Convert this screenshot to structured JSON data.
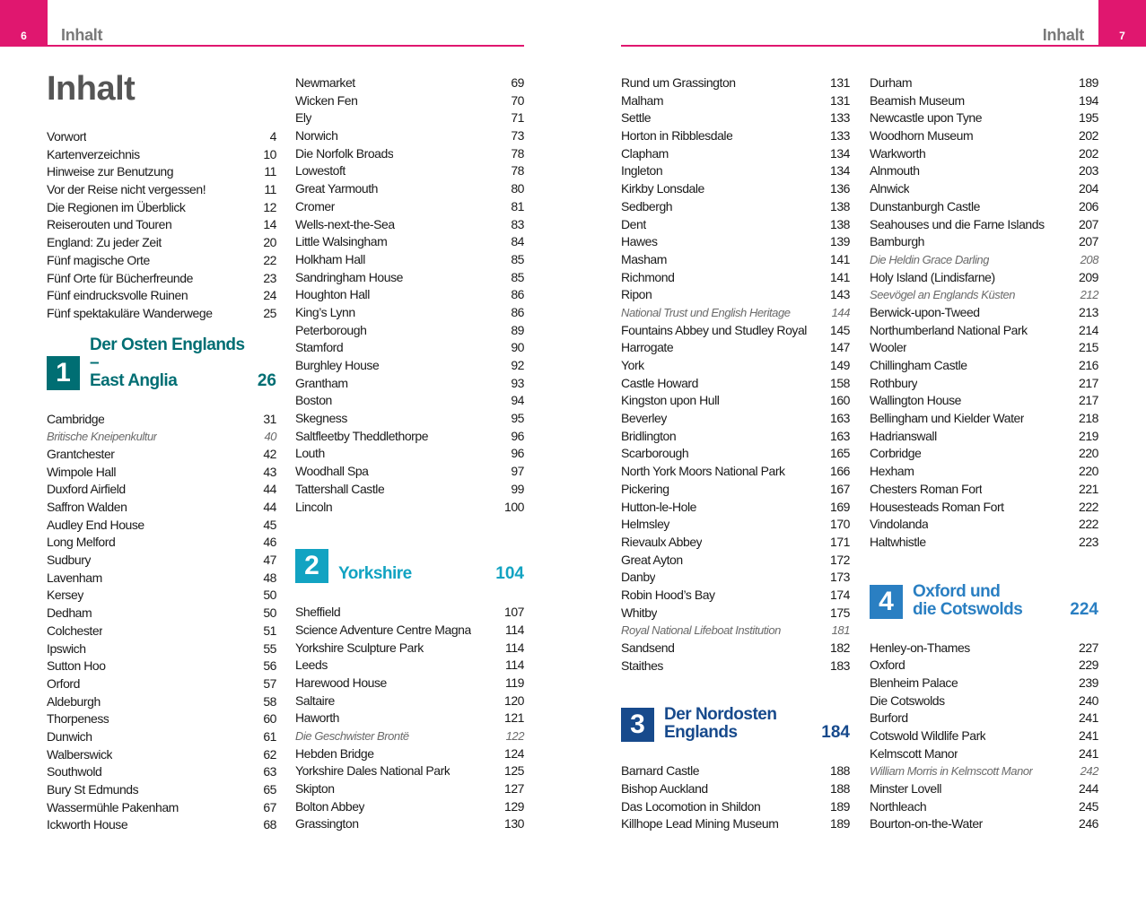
{
  "header_left": {
    "page": 6,
    "title": "Inhalt"
  },
  "header_right": {
    "title": "Inhalt",
    "page": 7
  },
  "columns": [
    {
      "title": "Inhalt",
      "items": [
        {
          "title": "Vorwort",
          "page": 4
        },
        {
          "title": "Kartenverzeichnis",
          "page": 10
        },
        {
          "title": "Hinweise zur Benutzung",
          "page": 11
        },
        {
          "title": "Vor der Reise nicht vergessen!",
          "page": 11
        },
        {
          "title": "Die Regionen im Überblick",
          "page": 12
        },
        {
          "title": "Reiserouten und Touren",
          "page": 14
        },
        {
          "title": "England: Zu jeder Zeit",
          "page": 20
        },
        {
          "title": "Fünf magische Orte",
          "page": 22
        },
        {
          "title": "Fünf Orte für Bücherfreunde",
          "page": 23
        },
        {
          "title": "Fünf eindrucksvolle Ruinen",
          "page": 24
        },
        {
          "title": "Fünf spektakuläre Wanderwege",
          "page": 25
        },
        {
          "number": 1,
          "title": [
            "Der Osten Englands –",
            "East Anglia"
          ],
          "page": 26,
          "color": "#006e73"
        },
        {
          "title": "Cambridge",
          "page": 31
        },
        {
          "title": "Britische Kneipenkultur",
          "page": 40,
          "style": "italic"
        },
        {
          "title": "Grantchester",
          "page": 42
        },
        {
          "title": "Wimpole Hall",
          "page": 43
        },
        {
          "title": "Duxford Airfield",
          "page": 44
        },
        {
          "title": "Saffron Walden",
          "page": 44
        },
        {
          "title": "Audley End House",
          "page": 45
        },
        {
          "title": "Long Melford",
          "page": 46
        },
        {
          "title": "Sudbury",
          "page": 47
        },
        {
          "title": "Lavenham",
          "page": 48
        },
        {
          "title": "Kersey",
          "page": 50
        },
        {
          "title": "Dedham",
          "page": 50
        },
        {
          "title": "Colchester",
          "page": 51
        },
        {
          "title": "Ipswich",
          "page": 55
        },
        {
          "title": "Sutton Hoo",
          "page": 56
        },
        {
          "title": "Orford",
          "page": 57
        },
        {
          "title": "Aldeburgh",
          "page": 58
        },
        {
          "title": "Thorpeness",
          "page": 60
        },
        {
          "title": "Dunwich",
          "page": 61
        },
        {
          "title": "Walberswick",
          "page": 62
        },
        {
          "title": "Southwold",
          "page": 63
        },
        {
          "title": "Bury St Edmunds",
          "page": 65
        },
        {
          "title": "Wassermühle Pakenham",
          "page": 67
        },
        {
          "title": "Ickworth House",
          "page": 68
        }
      ]
    },
    {
      "items": [
        {
          "title": "Newmarket",
          "page": 69
        },
        {
          "title": "Wicken Fen",
          "page": 70
        },
        {
          "title": "Ely",
          "page": 71
        },
        {
          "title": "Norwich",
          "page": 73
        },
        {
          "title": "Die Norfolk Broads",
          "page": 78
        },
        {
          "title": "Lowestoft",
          "page": 78
        },
        {
          "title": "Great Yarmouth",
          "page": 80
        },
        {
          "title": "Cromer",
          "page": 81
        },
        {
          "title": "Wells-next-the-Sea",
          "page": 83
        },
        {
          "title": "Little Walsingham",
          "page": 84
        },
        {
          "title": "Holkham Hall",
          "page": 85
        },
        {
          "title": "Sandringham House",
          "page": 85
        },
        {
          "title": "Houghton Hall",
          "page": 86
        },
        {
          "title": "King’s Lynn",
          "page": 86
        },
        {
          "title": "Peterborough",
          "page": 89
        },
        {
          "title": "Stamford",
          "page": 90
        },
        {
          "title": "Burghley House",
          "page": 92
        },
        {
          "title": "Grantham",
          "page": 93
        },
        {
          "title": "Boston",
          "page": 94
        },
        {
          "title": "Skegness",
          "page": 95
        },
        {
          "title": "Saltfleetby Theddlethorpe",
          "page": 96
        },
        {
          "title": "Louth",
          "page": 96
        },
        {
          "title": "Woodhall Spa",
          "page": 97
        },
        {
          "title": "Tattershall Castle",
          "page": 99
        },
        {
          "title": "Lincoln",
          "page": 100
        },
        {
          "number": 2,
          "title": [
            "Yorkshire"
          ],
          "page": 104,
          "color": "#12a3c2"
        },
        {
          "title": "Sheffield",
          "page": 107
        },
        {
          "title": "Science Adventure Centre Magna",
          "page": 114
        },
        {
          "title": "Yorkshire Sculpture Park",
          "page": 114
        },
        {
          "title": "Leeds",
          "page": 114
        },
        {
          "title": "Harewood House",
          "page": 119
        },
        {
          "title": "Saltaire",
          "page": 120
        },
        {
          "title": "Haworth",
          "page": 121
        },
        {
          "title": "Die Geschwister Brontë",
          "page": 122,
          "style": "italic"
        },
        {
          "title": "Hebden Bridge",
          "page": 124
        },
        {
          "title": "Yorkshire Dales National Park",
          "page": 125
        },
        {
          "title": "Skipton",
          "page": 127
        },
        {
          "title": "Bolton Abbey",
          "page": 129
        },
        {
          "title": "Grassington",
          "page": 130
        }
      ]
    },
    {
      "items": [
        {
          "title": "Rund um Grassington",
          "page": 131
        },
        {
          "title": "Malham",
          "page": 131
        },
        {
          "title": "Settle",
          "page": 133
        },
        {
          "title": "Horton in Ribblesdale",
          "page": 133
        },
        {
          "title": "Clapham",
          "page": 134
        },
        {
          "title": "Ingleton",
          "page": 134
        },
        {
          "title": "Kirkby Lonsdale",
          "page": 136
        },
        {
          "title": "Sedbergh",
          "page": 138
        },
        {
          "title": "Dent",
          "page": 138
        },
        {
          "title": "Hawes",
          "page": 139
        },
        {
          "title": "Masham",
          "page": 141
        },
        {
          "title": "Richmond",
          "page": 141
        },
        {
          "title": "Ripon",
          "page": 143
        },
        {
          "title": "National Trust und English Heritage",
          "page": 144,
          "style": "italic"
        },
        {
          "title": "Fountains Abbey und Studley Royal",
          "page": 145
        },
        {
          "title": "Harrogate",
          "page": 147
        },
        {
          "title": "York",
          "page": 149
        },
        {
          "title": "Castle Howard",
          "page": 158
        },
        {
          "title": "Kingston upon Hull",
          "page": 160
        },
        {
          "title": "Beverley",
          "page": 163
        },
        {
          "title": "Bridlington",
          "page": 163
        },
        {
          "title": "Scarborough",
          "page": 165
        },
        {
          "title": "North York Moors National Park",
          "page": 166
        },
        {
          "title": "Pickering",
          "page": 167
        },
        {
          "title": "Hutton-le-Hole",
          "page": 169
        },
        {
          "title": "Helmsley",
          "page": 170
        },
        {
          "title": "Rievaulx Abbey",
          "page": 171
        },
        {
          "title": "Great Ayton",
          "page": 172
        },
        {
          "title": "Danby",
          "page": 173
        },
        {
          "title": "Robin Hood’s Bay",
          "page": 174
        },
        {
          "title": "Whitby",
          "page": 175
        },
        {
          "title": "Royal National Lifeboat Institution",
          "page": 181,
          "style": "italic"
        },
        {
          "title": "Sandsend",
          "page": 182
        },
        {
          "title": "Staithes",
          "page": 183
        },
        {
          "number": 3,
          "title": [
            "Der Nordosten",
            "Englands"
          ],
          "page": 184,
          "color": "#174a8c"
        },
        {
          "title": "Barnard Castle",
          "page": 188
        },
        {
          "title": "Bishop Auckland",
          "page": 188
        },
        {
          "title": "Das Locomotion in Shildon",
          "page": 189
        },
        {
          "title": "Killhope Lead Mining Museum",
          "page": 189
        }
      ]
    },
    {
      "items": [
        {
          "title": "Durham",
          "page": 189
        },
        {
          "title": "Beamish Museum",
          "page": 194
        },
        {
          "title": "Newcastle upon Tyne",
          "page": 195
        },
        {
          "title": "Woodhorn Museum",
          "page": 202
        },
        {
          "title": "Warkworth",
          "page": 202
        },
        {
          "title": "Alnmouth",
          "page": 203
        },
        {
          "title": "Alnwick",
          "page": 204
        },
        {
          "title": "Dunstanburgh Castle",
          "page": 206
        },
        {
          "title": "Seahouses und die Farne Islands",
          "page": 207
        },
        {
          "title": "Bamburgh",
          "page": 207
        },
        {
          "title": "Die Heldin Grace Darling",
          "page": 208,
          "style": "italic"
        },
        {
          "title": "Holy Island (Lindisfarne)",
          "page": 209
        },
        {
          "title": "Seevögel an Englands Küsten",
          "page": 212,
          "style": "italic"
        },
        {
          "title": "Berwick-upon-Tweed",
          "page": 213
        },
        {
          "title": "Northumberland National Park",
          "page": 214
        },
        {
          "title": "Wooler",
          "page": 215
        },
        {
          "title": "Chillingham Castle",
          "page": 216
        },
        {
          "title": "Rothbury",
          "page": 217
        },
        {
          "title": "Wallington House",
          "page": 217
        },
        {
          "title": "Bellingham und Kielder Water",
          "page": 218
        },
        {
          "title": "Hadrianswall",
          "page": 219
        },
        {
          "title": "Corbridge",
          "page": 220
        },
        {
          "title": "Hexham",
          "page": 220
        },
        {
          "title": "Chesters Roman Fort",
          "page": 221
        },
        {
          "title": "Housesteads Roman Fort",
          "page": 222
        },
        {
          "title": "Vindolanda",
          "page": 222
        },
        {
          "title": "Haltwhistle",
          "page": 223
        },
        {
          "number": 4,
          "title": [
            "Oxford und",
            "die Cotswolds"
          ],
          "page": 224,
          "color": "#2a7fc2"
        },
        {
          "title": "Henley-on-Thames",
          "page": 227
        },
        {
          "title": "Oxford",
          "page": 229
        },
        {
          "title": "Blenheim Palace",
          "page": 239
        },
        {
          "title": "Die Cotswolds",
          "page": 240
        },
        {
          "title": "Burford",
          "page": 241
        },
        {
          "title": "Cotswold Wildlife Park",
          "page": 241
        },
        {
          "title": "Kelmscott Manor",
          "page": 241
        },
        {
          "title": "William Morris in Kelmscott Manor",
          "page": 242,
          "style": "italic"
        },
        {
          "title": "Minster Lovell",
          "page": 244
        },
        {
          "title": "Northleach",
          "page": 245
        },
        {
          "title": "Bourton-on-the-Water",
          "page": 246
        }
      ]
    }
  ]
}
